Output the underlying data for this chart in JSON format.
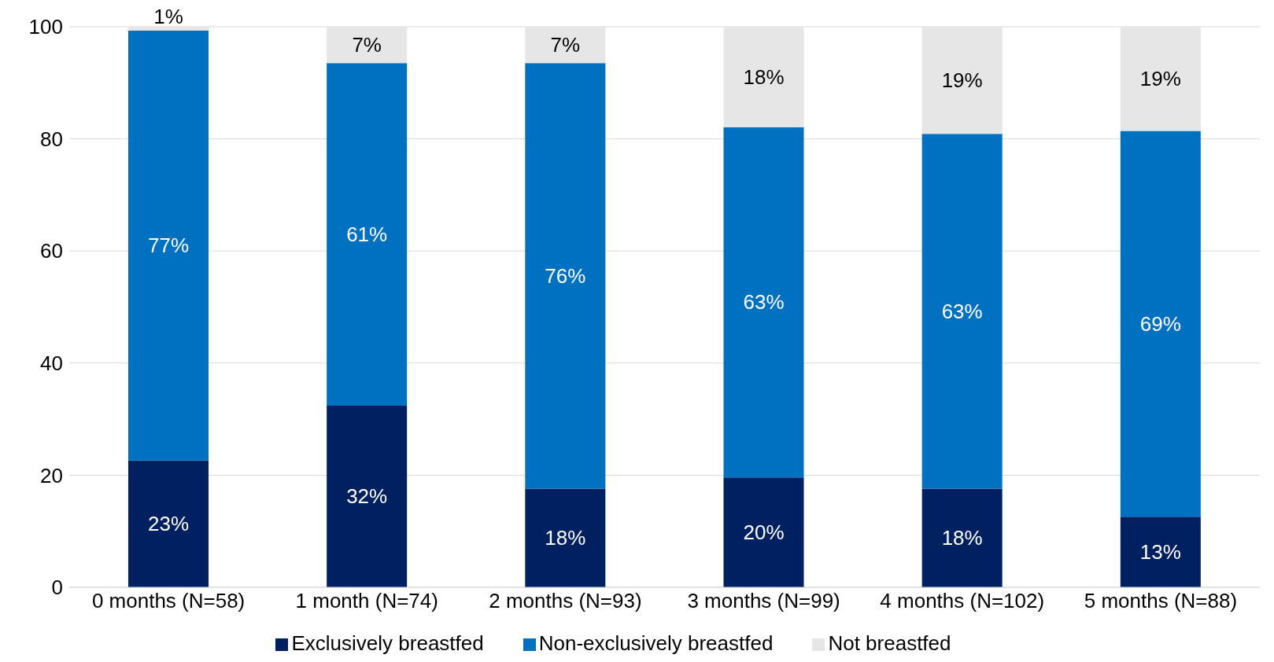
{
  "chart_data": {
    "type": "bar",
    "stacked": true,
    "categories": [
      "0 months (N=58)",
      "1 month (N=74)",
      "2 months (N=93)",
      "3 months (N=99)",
      "4 months (N=102)",
      "5 months (N=88)"
    ],
    "series": [
      {
        "name": "Exclusively breastfed",
        "color": "#002060",
        "values": [
          22.6,
          32.4,
          17.6,
          19.6,
          17.6,
          12.6
        ],
        "value_labels": [
          "23%",
          "32%",
          "18%",
          "20%",
          "18%",
          "13%"
        ]
      },
      {
        "name": "Non-exclusively breastfed",
        "color": "#0070c0",
        "values": [
          76.7,
          61.1,
          75.9,
          62.5,
          63.3,
          68.8
        ],
        "value_labels": [
          "77%",
          "61%",
          "76%",
          "63%",
          "63%",
          "69%"
        ]
      },
      {
        "name": "Not breastfed",
        "color": "#e6e6e6",
        "values": [
          0.7,
          6.5,
          6.5,
          17.9,
          19.1,
          18.6
        ],
        "value_labels": [
          "1%",
          "7%",
          "7%",
          "18%",
          "19%",
          "19%"
        ]
      }
    ],
    "ylim": [
      0,
      100
    ],
    "yticks": [
      0,
      20,
      40,
      60,
      80,
      100
    ],
    "grid": "y",
    "legend": "bottom"
  }
}
